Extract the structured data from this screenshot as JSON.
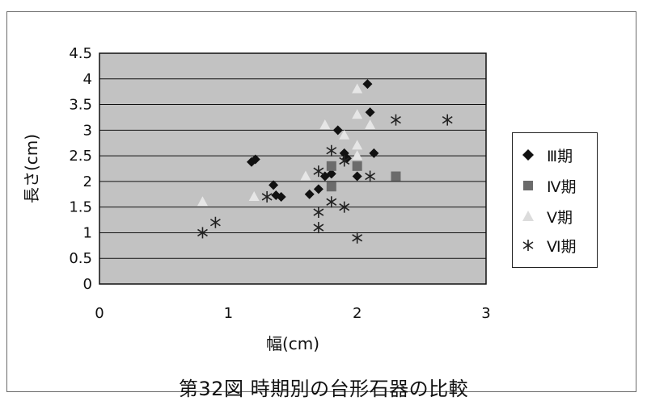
{
  "colors": {
    "plot_bg": "#c2c2c2",
    "grid": "#111111",
    "s3": "#111111",
    "s4": "#6b6b6b",
    "s5": "#e6e6e6",
    "s6": "#222222"
  },
  "caption": "第32図 時期別の台形石器の比較",
  "chart_data": {
    "type": "scatter",
    "title": "",
    "xlabel": "幅(cm)",
    "ylabel": "長さ(cm)",
    "xlim": [
      0,
      3
    ],
    "ylim": [
      0,
      4.5
    ],
    "xticks": [
      "0",
      "1",
      "2",
      "3"
    ],
    "yticks": [
      "0",
      "0.5",
      "1",
      "1.5",
      "2",
      "2.5",
      "3",
      "3.5",
      "4",
      "4.5"
    ],
    "grid": true,
    "legend_position": "right",
    "series": [
      {
        "name": "Ⅲ期",
        "marker": "diamond",
        "color": "#111111",
        "points": [
          [
            1.18,
            2.38
          ],
          [
            1.21,
            2.43
          ],
          [
            1.35,
            1.93
          ],
          [
            1.37,
            1.73
          ],
          [
            1.41,
            1.7
          ],
          [
            1.63,
            1.75
          ],
          [
            1.7,
            1.85
          ],
          [
            1.75,
            2.1
          ],
          [
            1.8,
            2.15
          ],
          [
            1.85,
            3.0
          ],
          [
            1.9,
            2.55
          ],
          [
            1.92,
            2.45
          ],
          [
            2.0,
            2.1
          ],
          [
            2.08,
            3.9
          ],
          [
            2.1,
            3.35
          ],
          [
            2.13,
            2.55
          ]
        ]
      },
      {
        "name": "Ⅳ期",
        "marker": "square",
        "color": "#6b6b6b",
        "points": [
          [
            1.8,
            2.3
          ],
          [
            1.8,
            1.9
          ],
          [
            2.0,
            2.3
          ],
          [
            2.3,
            2.1
          ]
        ]
      },
      {
        "name": "Ⅴ期",
        "marker": "triangle",
        "color": "#e6e6e6",
        "points": [
          [
            0.8,
            1.6
          ],
          [
            1.2,
            1.7
          ],
          [
            1.6,
            2.1
          ],
          [
            1.75,
            3.1
          ],
          [
            1.9,
            2.9
          ],
          [
            2.0,
            3.8
          ],
          [
            2.0,
            3.3
          ],
          [
            2.0,
            2.7
          ],
          [
            2.0,
            2.5
          ],
          [
            2.1,
            3.1
          ]
        ]
      },
      {
        "name": "Ⅵ期",
        "marker": "asterisk",
        "color": "#222222",
        "points": [
          [
            0.8,
            1.0
          ],
          [
            0.9,
            1.2
          ],
          [
            1.3,
            1.7
          ],
          [
            1.7,
            2.2
          ],
          [
            1.7,
            1.4
          ],
          [
            1.7,
            1.1
          ],
          [
            1.8,
            2.6
          ],
          [
            1.8,
            1.6
          ],
          [
            1.9,
            1.5
          ],
          [
            1.9,
            2.4
          ],
          [
            2.0,
            0.9
          ],
          [
            2.1,
            2.1
          ],
          [
            2.3,
            3.2
          ],
          [
            2.7,
            3.2
          ]
        ]
      }
    ]
  }
}
